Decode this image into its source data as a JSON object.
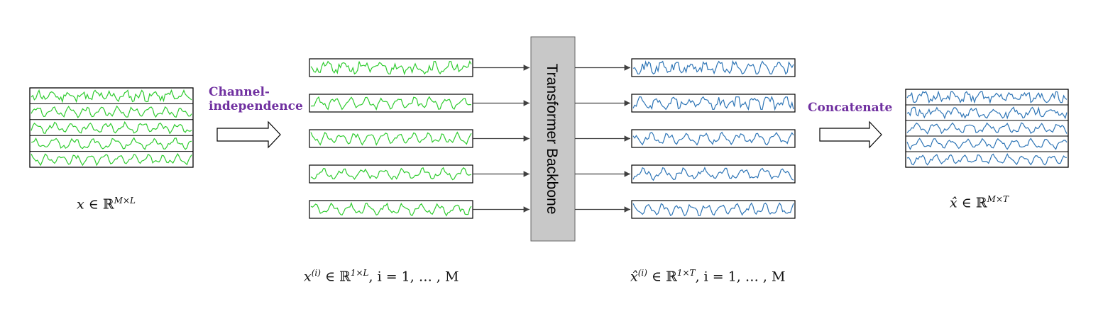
{
  "labels": {
    "channel_line1": "Channel-",
    "channel_line2": "independence",
    "concatenate": "Concatenate",
    "backbone": "Transformer Backbone"
  },
  "math": {
    "input": {
      "var": "x",
      "in": " ∈ ℝ",
      "sup": "M×L"
    },
    "split": {
      "var": "x",
      "sup_i": "(i)",
      "in": " ∈ ℝ",
      "sup": "1×L",
      "rest": ", i = 1, … , M"
    },
    "pred": {
      "var": "x̂",
      "sup_i": "(i)",
      "in": " ∈ ℝ",
      "sup": "1×T",
      "rest": ", i = 1, … , M"
    },
    "output": {
      "var": "x̂",
      "in": " ∈ ℝ",
      "sup": "M×T"
    }
  },
  "colors": {
    "input_series": "#2fcc2f",
    "output_series": "#2e75b6",
    "label": "#7030a0",
    "backbone_fill": "#c8c8c8",
    "arrow": "#404040"
  },
  "structure": {
    "channels": 5
  }
}
